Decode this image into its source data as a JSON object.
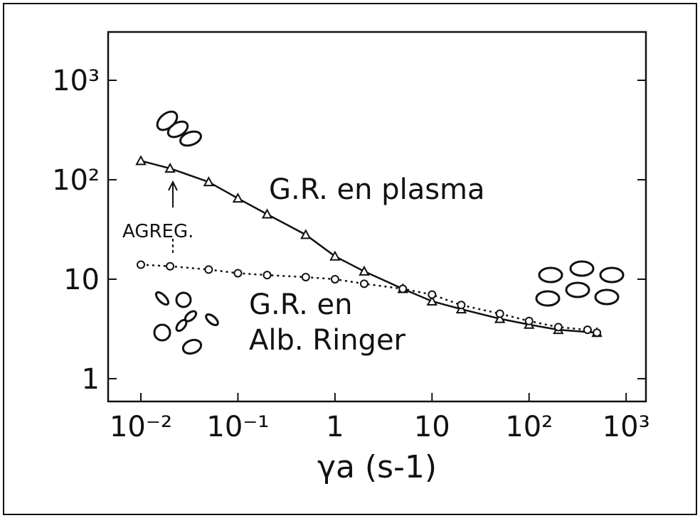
{
  "chart_data": {
    "type": "line",
    "x_label": "γa (s-1)",
    "xscale": "log",
    "yscale": "log",
    "xlim": [
      0.0046,
      1600
    ],
    "ylim": [
      0.59,
      3060
    ],
    "xticks": [
      {
        "value": 0.01,
        "label": "10⁻²"
      },
      {
        "value": 0.1,
        "label": "10⁻¹"
      },
      1,
      10,
      {
        "value": 100,
        "label": "10²"
      },
      {
        "value": 1000,
        "label": "10³"
      }
    ],
    "yticks": [
      1,
      10,
      {
        "value": 100,
        "label": "10²"
      },
      {
        "value": 1000,
        "label": "10³"
      }
    ],
    "series": [
      {
        "marker": "triangle",
        "dash": "solid",
        "color": "#111111",
        "x": [
          0.01,
          0.02,
          0.05,
          0.1,
          0.2,
          0.5,
          1,
          2,
          5,
          10,
          20,
          50,
          100,
          200,
          500
        ],
        "values": [
          155,
          130,
          95,
          65,
          45,
          28,
          17,
          12,
          8,
          6,
          5,
          4,
          3.5,
          3.1,
          2.9
        ]
      },
      {
        "marker": "circle",
        "dash": "dotted",
        "color": "#111111",
        "x": [
          0.01,
          0.02,
          0.05,
          0.1,
          0.2,
          0.5,
          1,
          2,
          5,
          10,
          20,
          50,
          100,
          200,
          400,
          500
        ],
        "values": [
          14,
          13.5,
          12.5,
          11.5,
          11,
          10.5,
          10,
          9,
          8,
          7,
          5.5,
          4.5,
          3.8,
          3.3,
          3.1,
          2.9
        ]
      }
    ],
    "annotations": [
      "G.R. en plasma",
      "AGREG.",
      "G.R. en",
      "Alb. Ringer"
    ]
  }
}
